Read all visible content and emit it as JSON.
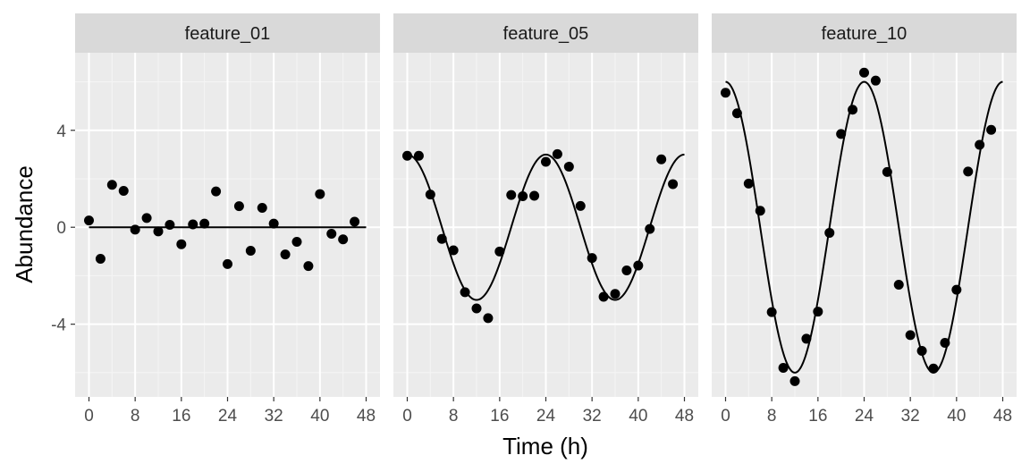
{
  "chart_data": {
    "type": "scatter",
    "xlabel": "Time (h)",
    "ylabel": "Abundance",
    "xlim": [
      -2.4,
      50.4
    ],
    "ylim": [
      -7.0,
      7.2
    ],
    "x_ticks": [
      0,
      8,
      16,
      24,
      32,
      40,
      48
    ],
    "y_ticks": [
      -4,
      0,
      4
    ],
    "grid": true,
    "facets": [
      {
        "label": "feature_01",
        "points": [
          {
            "x": 0,
            "y": 0.28
          },
          {
            "x": 2,
            "y": -1.3
          },
          {
            "x": 4,
            "y": 1.75
          },
          {
            "x": 6,
            "y": 1.5
          },
          {
            "x": 8,
            "y": -0.1
          },
          {
            "x": 10,
            "y": 0.38
          },
          {
            "x": 12,
            "y": -0.17
          },
          {
            "x": 14,
            "y": 0.1
          },
          {
            "x": 16,
            "y": -0.7
          },
          {
            "x": 18,
            "y": 0.12
          },
          {
            "x": 20,
            "y": 0.15
          },
          {
            "x": 22,
            "y": 1.48
          },
          {
            "x": 24,
            "y": -1.52
          },
          {
            "x": 26,
            "y": 0.87
          },
          {
            "x": 28,
            "y": -0.97
          },
          {
            "x": 30,
            "y": 0.8
          },
          {
            "x": 32,
            "y": 0.15
          },
          {
            "x": 34,
            "y": -1.12
          },
          {
            "x": 36,
            "y": -0.6
          },
          {
            "x": 38,
            "y": -1.6
          },
          {
            "x": 40,
            "y": 1.37
          },
          {
            "x": 42,
            "y": -0.27
          },
          {
            "x": 44,
            "y": -0.5
          },
          {
            "x": 46,
            "y": 0.23
          }
        ],
        "fit": {
          "mean": 0,
          "amplitude": 0,
          "period": 24,
          "peak": 0
        }
      },
      {
        "label": "feature_05",
        "points": [
          {
            "x": 0,
            "y": 2.95
          },
          {
            "x": 2,
            "y": 2.95
          },
          {
            "x": 4,
            "y": 1.35
          },
          {
            "x": 6,
            "y": -0.48
          },
          {
            "x": 8,
            "y": -0.95
          },
          {
            "x": 10,
            "y": -2.68
          },
          {
            "x": 12,
            "y": -3.35
          },
          {
            "x": 14,
            "y": -3.75
          },
          {
            "x": 16,
            "y": -1.0
          },
          {
            "x": 18,
            "y": 1.33
          },
          {
            "x": 20,
            "y": 1.28
          },
          {
            "x": 22,
            "y": 1.3
          },
          {
            "x": 24,
            "y": 2.7
          },
          {
            "x": 26,
            "y": 3.02
          },
          {
            "x": 28,
            "y": 2.5
          },
          {
            "x": 30,
            "y": 0.88
          },
          {
            "x": 32,
            "y": -1.27
          },
          {
            "x": 34,
            "y": -2.87
          },
          {
            "x": 36,
            "y": -2.75
          },
          {
            "x": 38,
            "y": -1.78
          },
          {
            "x": 40,
            "y": -1.58
          },
          {
            "x": 42,
            "y": -0.07
          },
          {
            "x": 44,
            "y": 2.8
          },
          {
            "x": 46,
            "y": 1.78
          }
        ],
        "fit": {
          "mean": 0,
          "amplitude": 3,
          "period": 24,
          "peak": 0
        }
      },
      {
        "label": "feature_10",
        "points": [
          {
            "x": 0,
            "y": 5.55
          },
          {
            "x": 2,
            "y": 4.7
          },
          {
            "x": 4,
            "y": 1.8
          },
          {
            "x": 6,
            "y": 0.68
          },
          {
            "x": 8,
            "y": -3.5
          },
          {
            "x": 10,
            "y": -5.8
          },
          {
            "x": 12,
            "y": -6.35
          },
          {
            "x": 14,
            "y": -4.6
          },
          {
            "x": 16,
            "y": -3.48
          },
          {
            "x": 18,
            "y": -0.23
          },
          {
            "x": 20,
            "y": 3.85
          },
          {
            "x": 22,
            "y": 4.85
          },
          {
            "x": 24,
            "y": 6.38
          },
          {
            "x": 26,
            "y": 6.05
          },
          {
            "x": 28,
            "y": 2.28
          },
          {
            "x": 30,
            "y": -2.37
          },
          {
            "x": 32,
            "y": -4.45
          },
          {
            "x": 34,
            "y": -5.1
          },
          {
            "x": 36,
            "y": -5.83
          },
          {
            "x": 38,
            "y": -4.77
          },
          {
            "x": 40,
            "y": -2.58
          },
          {
            "x": 42,
            "y": 2.3
          },
          {
            "x": 44,
            "y": 3.4
          },
          {
            "x": 46,
            "y": 4.02
          }
        ],
        "fit": {
          "mean": 0,
          "amplitude": 6,
          "period": 24,
          "peak": 0
        }
      }
    ]
  }
}
